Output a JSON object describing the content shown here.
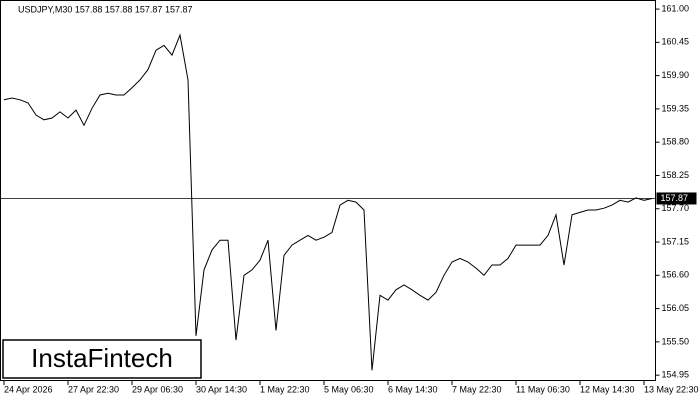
{
  "chart_data": {
    "type": "line",
    "title": "USDJPY,M30  157.88 157.88 157.87 157.87",
    "watermark": "InstaFintech",
    "color": "#000000",
    "last_price": 157.87,
    "categories": [
      "24 Apr 2026",
      null,
      null,
      null,
      null,
      null,
      null,
      null,
      "27 Apr 22:30",
      null,
      null,
      null,
      null,
      null,
      null,
      null,
      "29 Apr 06:30",
      null,
      null,
      null,
      null,
      null,
      null,
      null,
      "30 Apr 14:30",
      null,
      null,
      null,
      null,
      null,
      null,
      null,
      "1 May 22:30",
      null,
      null,
      null,
      null,
      null,
      null,
      null,
      "5 May 06:30",
      null,
      null,
      null,
      null,
      null,
      null,
      null,
      "6 May 14:30",
      null,
      null,
      null,
      null,
      null,
      null,
      null,
      "7 May 22:30",
      null,
      null,
      null,
      null,
      null,
      null,
      null,
      "11 May 06:30",
      null,
      null,
      null,
      null,
      null,
      null,
      null,
      "12 May 14:30",
      null,
      null,
      null,
      null,
      null,
      null,
      null,
      "13 May 22:30",
      null
    ],
    "values": [
      159.5,
      159.53,
      159.5,
      159.45,
      159.25,
      159.17,
      159.2,
      159.3,
      159.2,
      159.33,
      159.08,
      159.36,
      159.58,
      159.61,
      159.58,
      159.58,
      159.7,
      159.83,
      160.0,
      160.32,
      160.4,
      160.24,
      160.57,
      159.83,
      155.6,
      156.69,
      157.02,
      157.18,
      157.18,
      155.53,
      156.6,
      156.69,
      156.85,
      157.18,
      155.69,
      156.93,
      157.1,
      157.18,
      157.26,
      157.18,
      157.23,
      157.31,
      157.76,
      157.84,
      157.81,
      157.68,
      155.03,
      156.27,
      156.19,
      156.36,
      156.44,
      156.36,
      156.27,
      156.19,
      156.32,
      156.6,
      156.82,
      156.88,
      156.82,
      156.72,
      156.6,
      156.77,
      156.77,
      156.88,
      157.1,
      157.1,
      157.1,
      157.1,
      157.26,
      157.6,
      156.77,
      157.6,
      157.64,
      157.68,
      157.68,
      157.71,
      157.76,
      157.84,
      157.81,
      157.88,
      157.84,
      157.87
    ],
    "ylim": [
      154.87,
      161.15
    ],
    "yticks": [
      {
        "value": 161,
        "label": "161.00"
      },
      {
        "value": 160.45,
        "label": "160.45"
      },
      {
        "value": 159.9,
        "label": "159.90"
      },
      {
        "value": 159.35,
        "label": "159.35"
      },
      {
        "value": 158.8,
        "label": "158.80"
      },
      {
        "value": 158.25,
        "label": "158.25"
      },
      {
        "value": 157.7,
        "label": "157.70"
      },
      {
        "value": 157.15,
        "label": "157.15"
      },
      {
        "value": 156.6,
        "label": "156.60"
      },
      {
        "value": 156.05,
        "label": "156.05"
      },
      {
        "value": 155.5,
        "label": "155.50"
      },
      {
        "value": 154.95,
        "label": "154.95"
      }
    ],
    "grid": false
  }
}
